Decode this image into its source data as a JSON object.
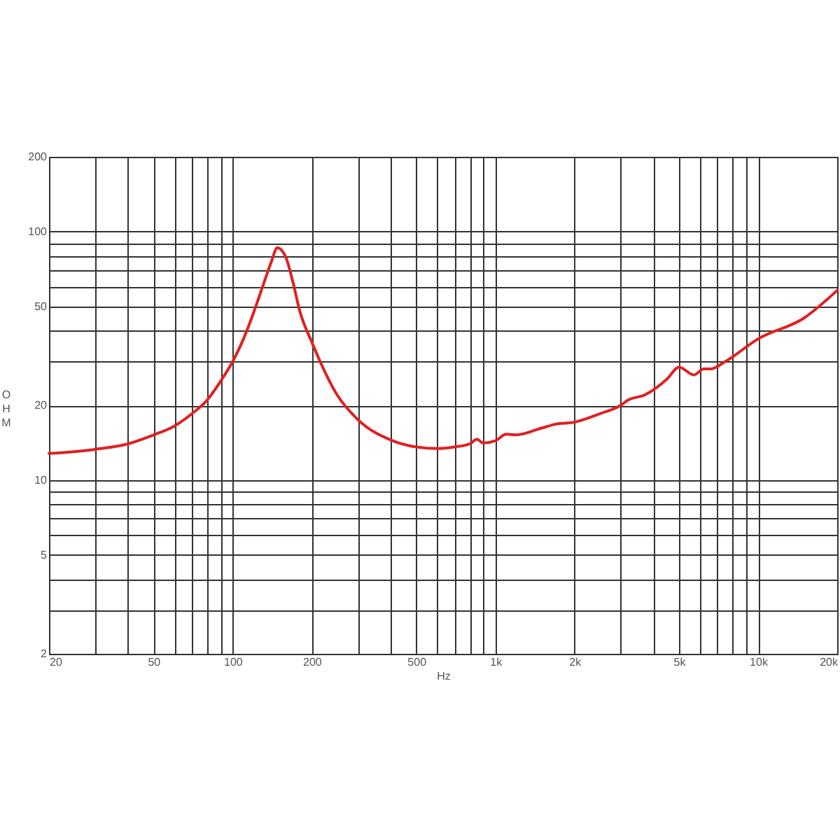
{
  "chart_data": {
    "type": "line",
    "xlabel": "Hz",
    "ylabel": "OHM",
    "log": "xy",
    "grid": true,
    "xlim": [
      20,
      20000
    ],
    "ylim": [
      2,
      200
    ],
    "xticks": [
      20,
      {
        "value": 30,
        "label": null
      },
      {
        "value": 40,
        "label": null
      },
      50,
      {
        "value": 60,
        "label": null
      },
      {
        "value": 70,
        "label": null
      },
      {
        "value": 80,
        "label": null
      },
      {
        "value": 90,
        "label": null
      },
      100,
      200,
      {
        "value": 300,
        "label": null
      },
      {
        "value": 400,
        "label": null
      },
      500,
      {
        "value": 600,
        "label": null
      },
      {
        "value": 700,
        "label": null
      },
      {
        "value": 800,
        "label": null
      },
      {
        "value": 900,
        "label": null
      },
      {
        "value": 1000,
        "label": "1k"
      },
      {
        "value": 2000,
        "label": "2k"
      },
      {
        "value": 3000,
        "label": null
      },
      {
        "value": 4000,
        "label": null
      },
      {
        "value": 5000,
        "label": "5k"
      },
      {
        "value": 6000,
        "label": null
      },
      {
        "value": 7000,
        "label": null
      },
      {
        "value": 8000,
        "label": null
      },
      {
        "value": 9000,
        "label": null
      },
      {
        "value": 10000,
        "label": "10k"
      },
      {
        "value": 20000,
        "label": "20k"
      }
    ],
    "yticks": [
      2,
      {
        "value": 3,
        "label": null
      },
      {
        "value": 4,
        "label": null
      },
      5,
      {
        "value": 6,
        "label": null
      },
      {
        "value": 7,
        "label": null
      },
      {
        "value": 8,
        "label": null
      },
      {
        "value": 9,
        "label": null
      },
      10,
      20,
      {
        "value": 30,
        "label": null
      },
      {
        "value": 40,
        "label": null
      },
      50,
      {
        "value": 60,
        "label": null
      },
      {
        "value": 70,
        "label": null
      },
      {
        "value": 80,
        "label": null
      },
      {
        "value": 90,
        "label": null
      },
      100,
      200
    ],
    "x": [
      20,
      30,
      40,
      50,
      60,
      70,
      80,
      90,
      100,
      110,
      120,
      130,
      140,
      148,
      160,
      170,
      180,
      200,
      250,
      300,
      400,
      500,
      600,
      700,
      800,
      850,
      900,
      1000,
      1100,
      1200,
      1500,
      1700,
      2000,
      2500,
      3000,
      3200,
      3700,
      4500,
      5000,
      5700,
      6200,
      6600,
      7500,
      10000,
      15000,
      20000
    ],
    "series": [
      {
        "color": "#e02020",
        "values": [
          12.8,
          13.3,
          14.0,
          15.2,
          16.5,
          18.5,
          21,
          25,
          30,
          37,
          47,
          60,
          75,
          86,
          78,
          62,
          48,
          36,
          22,
          17.5,
          14.5,
          13.6,
          13.4,
          13.6,
          14.0,
          14.6,
          14.1,
          14.4,
          15.3,
          15.2,
          16.2,
          16.8,
          17.1,
          18.5,
          20,
          21,
          22,
          25.5,
          28.5,
          26.5,
          28,
          28,
          30,
          37,
          45,
          58
        ]
      }
    ]
  }
}
